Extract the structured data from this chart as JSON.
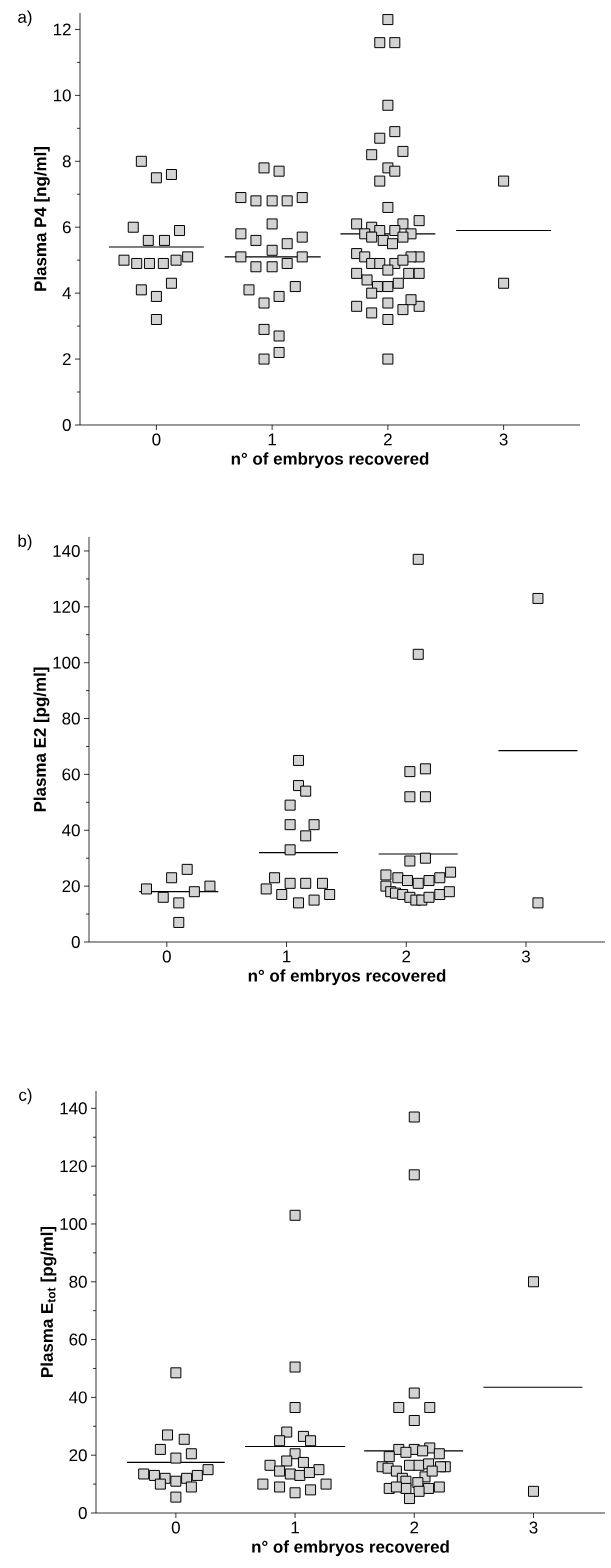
{
  "chart_data": [
    {
      "type": "scatter",
      "title": "a)",
      "xlabel": "n° of embryos recovered",
      "ylabel": "Plasma P4 [ng/ml]",
      "marker": "square",
      "xlim": [
        -0.66,
        3.66
      ],
      "xticks": [
        0,
        1,
        2,
        3
      ],
      "ylim": [
        0,
        12.5
      ],
      "yticks": [
        0,
        {
          "value": 1,
          "label": null
        },
        2,
        {
          "value": 3,
          "label": null
        },
        4,
        {
          "value": 5,
          "label": null
        },
        6,
        {
          "value": 7,
          "label": null
        },
        8,
        {
          "value": 9,
          "label": null
        },
        10,
        {
          "value": 11,
          "label": null
        },
        12
      ],
      "series": [
        {
          "color": "#d3d3d3",
          "x": [
            -0.13,
            0,
            0.13,
            -0.2,
            0.2,
            -0.07,
            0.07,
            -0.28,
            -0.17,
            -0.06,
            0.06,
            0.17,
            0.27,
            -0.13,
            0.13,
            0,
            0,
            0.93,
            1.06,
            0.73,
            0.86,
            1,
            1.13,
            1.26,
            1,
            0.73,
            1.26,
            0.86,
            1.13,
            1,
            0.73,
            1.26,
            0.86,
            1,
            1.13,
            0.8,
            1.2,
            0.93,
            1.06,
            0.93,
            1.06,
            0.93,
            1.06,
            2,
            1.93,
            2.06,
            2,
            1.93,
            2.06,
            1.86,
            2.13,
            2,
            2.06,
            1.93,
            2,
            1.73,
            1.86,
            2.13,
            2.27,
            1.93,
            2.06,
            1.8,
            2.2,
            1.86,
            1.96,
            2.13,
            2.04,
            1.73,
            1.8,
            2.27,
            2.2,
            1.86,
            1.93,
            2.06,
            2.13,
            2,
            1.73,
            2.27,
            2.18,
            1.82,
            1.91,
            2,
            2.09,
            1.86,
            1.73,
            2.27,
            2.2,
            2.13,
            1.86,
            2,
            2,
            2,
            3,
            3
          ],
          "values": [
            8.0,
            7.5,
            7.6,
            6.0,
            5.9,
            5.6,
            5.6,
            5.0,
            4.9,
            4.9,
            4.9,
            5.0,
            5.1,
            4.1,
            4.3,
            3.9,
            3.2,
            7.8,
            7.7,
            6.9,
            6.8,
            6.8,
            6.8,
            6.9,
            6.1,
            5.8,
            5.7,
            5.6,
            5.5,
            5.3,
            5.1,
            5.1,
            4.8,
            4.8,
            4.9,
            4.1,
            4.2,
            3.7,
            3.9,
            2.9,
            2.7,
            2.0,
            2.2,
            12.3,
            11.6,
            11.6,
            9.7,
            8.7,
            8.9,
            8.2,
            8.3,
            7.8,
            7.7,
            7.4,
            6.6,
            6.1,
            6.0,
            6.1,
            6.2,
            5.9,
            5.9,
            5.8,
            5.8,
            5.7,
            5.6,
            5.7,
            5.5,
            5.2,
            5.1,
            5.1,
            5.1,
            4.9,
            4.9,
            4.9,
            5.0,
            4.7,
            4.6,
            4.6,
            4.6,
            4.4,
            4.2,
            4.2,
            4.3,
            4.0,
            3.6,
            3.6,
            3.8,
            3.5,
            3.4,
            3.7,
            3.2,
            2.0,
            7.4,
            4.3
          ]
        },
        {
          "type": "line",
          "color": "#000000",
          "marker": "none",
          "x": [
            -0.41,
            0.41,
            0.5,
            0.59,
            1.42,
            1.5,
            1.59,
            2.41,
            2.5,
            2.59,
            3.41
          ],
          "values": [
            5.4,
            5.4,
            null,
            5.1,
            5.1,
            null,
            5.8,
            5.8,
            null,
            5.9,
            5.9
          ]
        }
      ]
    },
    {
      "type": "scatter",
      "title": "b)",
      "xlabel": "n° of embryos recovered",
      "ylabel": "Plasma E2 [pg/ml]",
      "marker": "square",
      "xlim": [
        -0.65,
        3.66
      ],
      "xticks": [
        0,
        1,
        2,
        3
      ],
      "ylim": [
        0,
        145
      ],
      "yticks": [
        0,
        {
          "value": 10,
          "label": null
        },
        20,
        {
          "value": 30,
          "label": null
        },
        40,
        {
          "value": 50,
          "label": null
        },
        60,
        {
          "value": 70,
          "label": null
        },
        80,
        {
          "value": 90,
          "label": null
        },
        100,
        {
          "value": 110,
          "label": null
        },
        120,
        {
          "value": 130,
          "label": null
        },
        140
      ],
      "series": [
        {
          "color": "#d3d3d3",
          "x": [
            -0.17,
            -0.03,
            0.04,
            0.17,
            0.1,
            0.23,
            0.36,
            0.1,
            1.1,
            1.1,
            1.16,
            1.03,
            1.03,
            1.23,
            1.16,
            1.03,
            0.9,
            0.83,
            0.96,
            1.03,
            1.16,
            1.3,
            1.36,
            1.1,
            1.23,
            2.1,
            2.1,
            2.03,
            2.16,
            2.03,
            2.16,
            2.03,
            2.16,
            1.83,
            1.93,
            2.01,
            2.1,
            2.19,
            2.28,
            2.37,
            1.83,
            1.87,
            1.91,
            1.97,
            2.03,
            2.08,
            2.13,
            2.19,
            2.28,
            2.36,
            3.1,
            3.1
          ],
          "values": [
            19,
            16,
            23,
            26,
            14,
            18,
            20,
            7,
            65,
            56,
            54,
            49,
            42,
            42,
            38,
            33,
            23,
            19,
            17,
            21,
            21,
            21,
            17,
            14,
            15,
            137,
            103,
            61,
            62,
            52,
            52,
            29,
            30,
            24,
            23,
            22,
            21,
            22,
            23,
            25,
            20,
            18,
            17.5,
            17,
            16,
            15,
            15,
            16,
            17,
            18,
            123,
            14
          ]
        },
        {
          "type": "line",
          "color": "#000000",
          "marker": "none",
          "x": [
            -0.23,
            0.43,
            0.6,
            0.77,
            1.43,
            1.6,
            1.77,
            2.43,
            2.6,
            2.77,
            3.43
          ],
          "values": [
            18,
            18,
            null,
            32,
            32,
            null,
            31.5,
            31.5,
            null,
            68.5,
            68.5
          ]
        }
      ]
    },
    {
      "type": "scatter",
      "title": "c)",
      "xlabel": "n° of embryos recovered",
      "ylabel": "Plasma E$_{tot}$ [pg/ml]",
      "marker": "square",
      "xlim": [
        -0.67,
        3.6
      ],
      "xticks": [
        0,
        1,
        2,
        3
      ],
      "ylim": [
        0,
        146
      ],
      "yticks": [
        0,
        {
          "value": 10,
          "label": null
        },
        20,
        {
          "value": 30,
          "label": null
        },
        40,
        {
          "value": 50,
          "label": null
        },
        60,
        {
          "value": 70,
          "label": null
        },
        80,
        {
          "value": 90,
          "label": null
        },
        100,
        {
          "value": 110,
          "label": null
        },
        120,
        {
          "value": 130,
          "label": null
        },
        140
      ],
      "series": [
        {
          "color": "#d3d3d3",
          "x": [
            0,
            -0.07,
            0.07,
            -0.13,
            0.13,
            0,
            -0.27,
            -0.18,
            -0.09,
            0,
            0.09,
            0.18,
            0.27,
            -0.13,
            0.13,
            0,
            1,
            1,
            1,
            0.93,
            1.07,
            0.87,
            1.13,
            1,
            0.93,
            1.07,
            0.79,
            1.2,
            0.87,
            0.96,
            1.04,
            1.12,
            0.73,
            0.87,
            1,
            1.13,
            1.26,
            2,
            2,
            2,
            1.87,
            2.13,
            2,
            1.87,
            2,
            2.13,
            1.79,
            1.93,
            2.07,
            2.21,
            1.73,
            1.78,
            1.96,
            2.04,
            2.12,
            2.26,
            2.22,
            1.85,
            1.9,
            2.09,
            2.15,
            1.79,
            1.93,
            2.03,
            2.12,
            2.21,
            1.93,
            2.04,
            1.96,
            1.85,
            3,
            3
          ],
          "values": [
            48.5,
            27,
            25.5,
            22,
            20.5,
            19,
            13.5,
            13,
            12,
            11,
            12,
            13,
            15,
            10,
            9,
            5.5,
            103,
            50.5,
            36.5,
            28,
            26.5,
            25,
            25,
            20.5,
            18,
            17.5,
            16.5,
            15,
            14.5,
            13.5,
            13,
            14,
            10,
            9,
            7,
            8,
            10,
            137,
            117,
            41.5,
            36.5,
            36.5,
            32,
            22,
            22,
            22.5,
            19.5,
            21,
            21.5,
            20.5,
            16,
            15.5,
            16.5,
            16.5,
            17,
            16,
            16,
            14.5,
            12,
            12.5,
            14.5,
            8.5,
            11,
            10.5,
            8.5,
            9,
            8.5,
            7.5,
            5,
            9,
            80,
            7.5
          ]
        },
        {
          "type": "line",
          "color": "#000000",
          "marker": "none",
          "x": [
            -0.41,
            0.41,
            0.5,
            0.58,
            1.42,
            1.5,
            1.58,
            2.41,
            2.5,
            2.58,
            3.41
          ],
          "values": [
            17.5,
            17.5,
            null,
            23,
            23,
            null,
            21.5,
            21.5,
            null,
            43.5,
            43.5
          ]
        }
      ]
    }
  ]
}
